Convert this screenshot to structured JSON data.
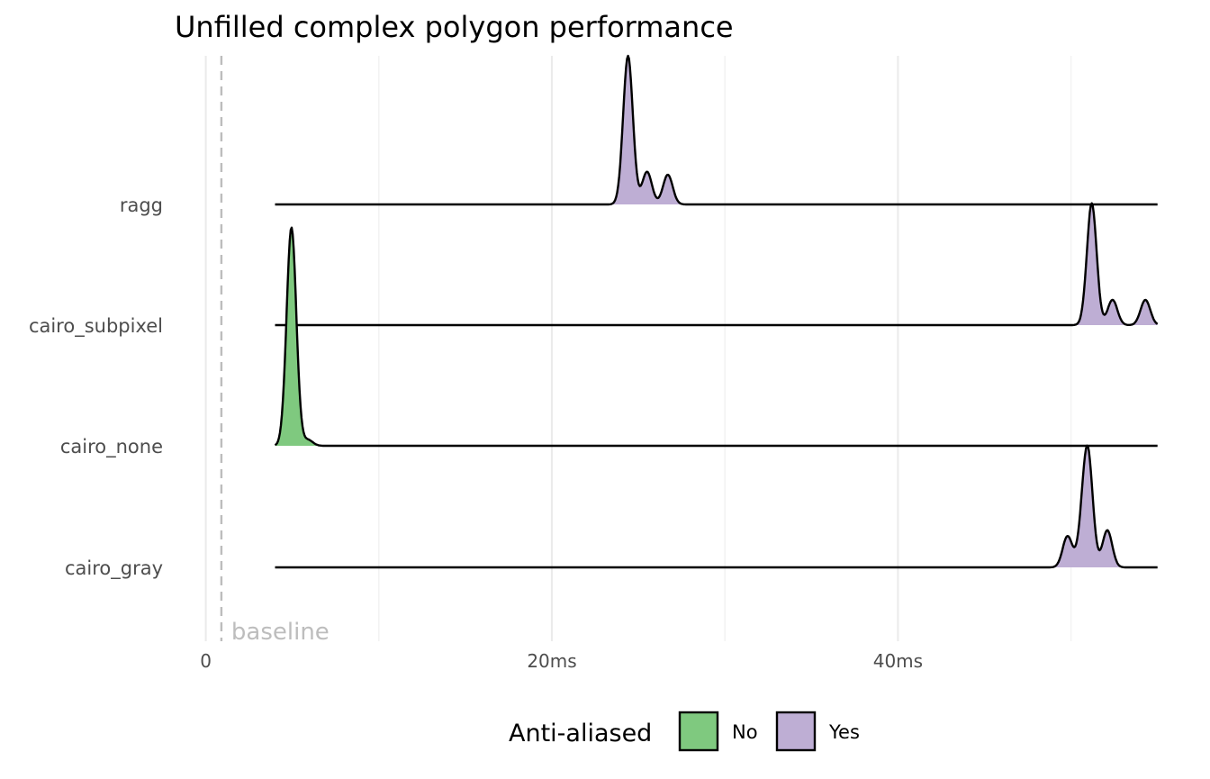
{
  "chart_data": {
    "type": "ridgeline",
    "title": "Unfilled complex polygon performance",
    "xlabel": "",
    "ylabel": "",
    "xlim": [
      -0.2,
      55
    ],
    "x_ticks": [
      {
        "value": 0,
        "label": "0"
      },
      {
        "value": 20,
        "label": "20ms"
      },
      {
        "value": 40,
        "label": "40ms"
      }
    ],
    "x_minor_ticks": [
      10,
      30,
      50
    ],
    "grid": true,
    "baseline": {
      "value": 0.9,
      "label": "baseline"
    },
    "categories": [
      "cairo_gray",
      "cairo_none",
      "cairo_subpixel",
      "ragg"
    ],
    "x_range": [
      4.0,
      55.0
    ],
    "series": [
      {
        "category": "ragg",
        "anti_aliased": "Yes",
        "peaks": [
          {
            "x": 24.4,
            "h": 1.0
          },
          {
            "x": 25.5,
            "h": 0.22
          },
          {
            "x": 26.7,
            "h": 0.2
          }
        ]
      },
      {
        "category": "cairo_subpixel",
        "anti_aliased": "Yes",
        "peaks": [
          {
            "x": 51.2,
            "h": 0.82
          },
          {
            "x": 52.4,
            "h": 0.17
          },
          {
            "x": 54.3,
            "h": 0.17
          }
        ]
      },
      {
        "category": "cairo_none",
        "anti_aliased": "No",
        "peaks": [
          {
            "x": 4.95,
            "h": 1.47
          },
          {
            "x": 5.9,
            "h": 0.04
          }
        ]
      },
      {
        "category": "cairo_gray",
        "anti_aliased": "Yes",
        "peaks": [
          {
            "x": 49.8,
            "h": 0.21
          },
          {
            "x": 50.7,
            "h": 0.24
          },
          {
            "x": 51.0,
            "h": 0.67
          },
          {
            "x": 52.1,
            "h": 0.25
          }
        ]
      }
    ],
    "legend": {
      "title": "Anti-aliased",
      "position": "bottom",
      "items": [
        {
          "label": "No",
          "color": "#7fc97f"
        },
        {
          "label": "Yes",
          "color": "#beaed4"
        }
      ]
    }
  }
}
